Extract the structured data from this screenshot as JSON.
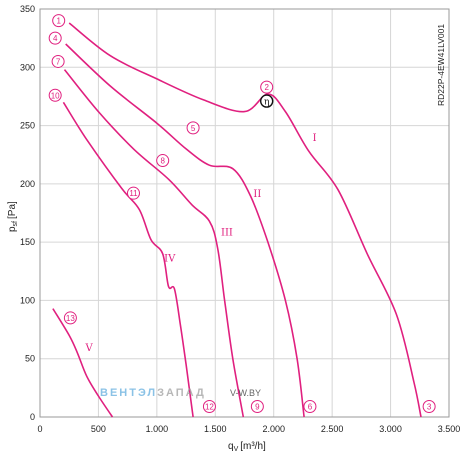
{
  "chart_data": {
    "type": "line",
    "title": "",
    "model": "RD22P-4EW41LV001",
    "xlabel_main": "q",
    "xlabel_sub": "V",
    "xlabel_unit": "[m³/h]",
    "ylabel_main": "p",
    "ylabel_sub": "sf",
    "ylabel_unit": "[Pa]",
    "xlim": [
      0,
      3500
    ],
    "ylim": [
      0,
      350
    ],
    "x_ticks": [
      0,
      500,
      1000,
      1500,
      2000,
      2500,
      3000,
      3500
    ],
    "x_tick_labels": [
      "0",
      "500",
      "1.000",
      "1.500",
      "2.000",
      "2.500",
      "3.000",
      "3.500"
    ],
    "y_ticks": [
      0,
      50,
      100,
      150,
      200,
      250,
      300,
      350
    ],
    "y_tick_labels": [
      "0",
      "50",
      "100",
      "150",
      "200",
      "250",
      "300",
      "350"
    ],
    "grid": true,
    "line_color": "#e0207f",
    "series": [
      {
        "name": "I",
        "label_x": 2350,
        "label_y": 240,
        "points": [
          [
            250,
            338
          ],
          [
            600,
            310
          ],
          [
            1000,
            290
          ],
          [
            1400,
            272
          ],
          [
            1750,
            262
          ],
          [
            1950,
            277
          ],
          [
            2100,
            262
          ],
          [
            2300,
            228
          ],
          [
            2550,
            195
          ],
          [
            2800,
            140
          ],
          [
            3050,
            88
          ],
          [
            3200,
            30
          ],
          [
            3260,
            0
          ]
        ]
      },
      {
        "name": "II",
        "label_x": 1860,
        "label_y": 192,
        "points": [
          [
            220,
            320
          ],
          [
            600,
            284
          ],
          [
            1000,
            252
          ],
          [
            1250,
            230
          ],
          [
            1450,
            216
          ],
          [
            1650,
            213
          ],
          [
            1800,
            190
          ],
          [
            1950,
            150
          ],
          [
            2100,
            100
          ],
          [
            2200,
            50
          ],
          [
            2260,
            0
          ]
        ]
      },
      {
        "name": "III",
        "label_x": 1600,
        "label_y": 159,
        "points": [
          [
            210,
            298
          ],
          [
            500,
            262
          ],
          [
            800,
            230
          ],
          [
            1100,
            204
          ],
          [
            1300,
            182
          ],
          [
            1450,
            168
          ],
          [
            1520,
            145
          ],
          [
            1580,
            100
          ],
          [
            1650,
            50
          ],
          [
            1740,
            0
          ]
        ]
      },
      {
        "name": "IV",
        "label_x": 1110,
        "label_y": 137,
        "points": [
          [
            200,
            270
          ],
          [
            400,
            238
          ],
          [
            700,
            196
          ],
          [
            850,
            178
          ],
          [
            950,
            152
          ],
          [
            1050,
            140
          ],
          [
            1100,
            112
          ],
          [
            1150,
            110
          ],
          [
            1200,
            80
          ],
          [
            1250,
            45
          ],
          [
            1310,
            0
          ]
        ]
      },
      {
        "name": "V",
        "label_x": 420,
        "label_y": 60,
        "points": [
          [
            110,
            93
          ],
          [
            250,
            70
          ],
          [
            320,
            55
          ],
          [
            400,
            35
          ],
          [
            500,
            18
          ],
          [
            620,
            0
          ]
        ]
      }
    ],
    "points": [
      {
        "label": "1",
        "x": 160,
        "y": 340
      },
      {
        "label": "2",
        "x": 1940,
        "y": 283
      },
      {
        "label": "3",
        "x": 3330,
        "y": 9
      },
      {
        "label": "4",
        "x": 130,
        "y": 325
      },
      {
        "label": "5",
        "x": 1310,
        "y": 248
      },
      {
        "label": "6",
        "x": 2310,
        "y": 9
      },
      {
        "label": "7",
        "x": 155,
        "y": 305
      },
      {
        "label": "8",
        "x": 1050,
        "y": 220
      },
      {
        "label": "9",
        "x": 1860,
        "y": 9
      },
      {
        "label": "10",
        "x": 130,
        "y": 276
      },
      {
        "label": "11",
        "x": 800,
        "y": 192
      },
      {
        "label": "12",
        "x": 1450,
        "y": 9
      },
      {
        "label": "13",
        "x": 260,
        "y": 85
      }
    ],
    "optimum": {
      "label": "η",
      "x": 1940,
      "y": 271
    }
  },
  "watermark": {
    "brand_a": "ВЕНТЭЛ",
    "brand_b": "ЗАПАД",
    "site": "V-W.BY",
    "color_a": "#5aa9dc",
    "color_b": "#9a9a9a"
  }
}
